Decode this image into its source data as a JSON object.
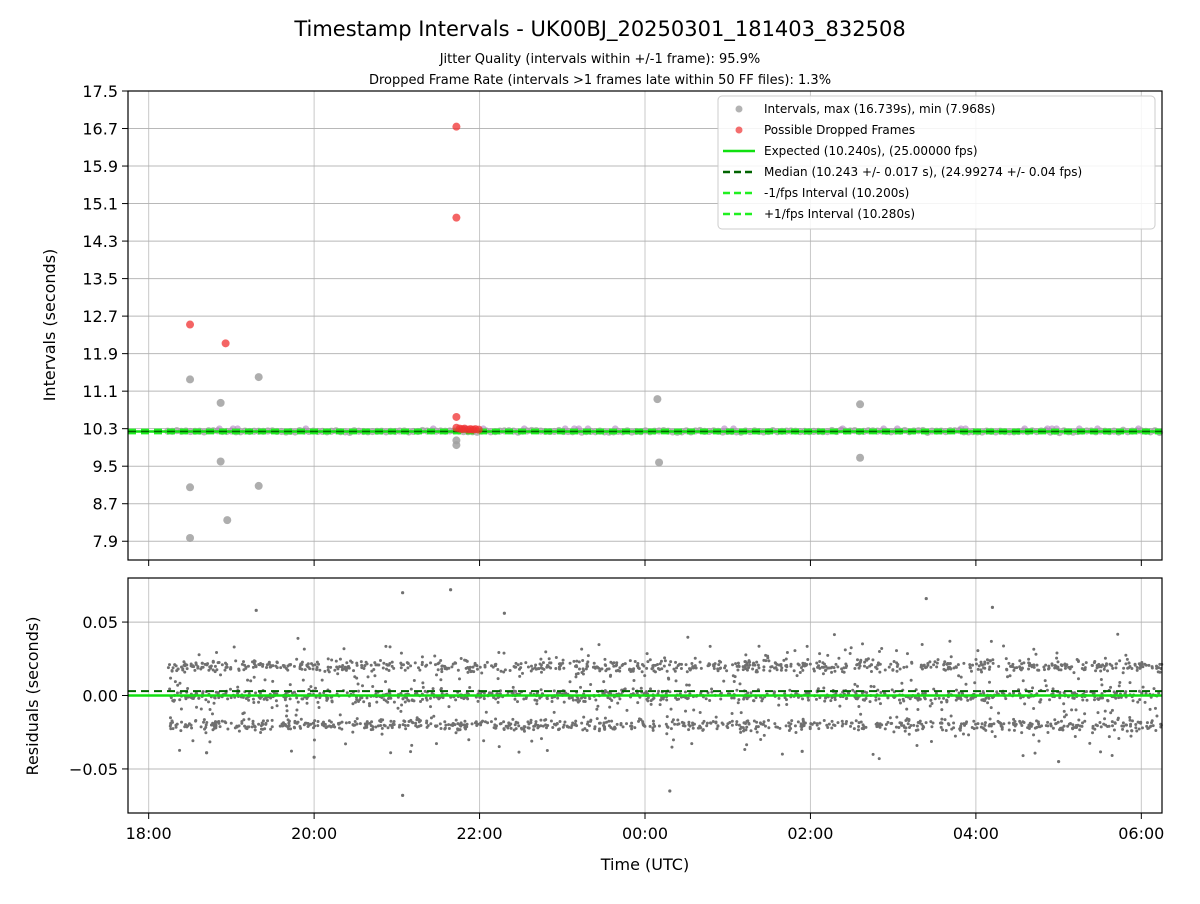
{
  "figure": {
    "title": "Timestamp Intervals - UK00BJ_20250301_181403_832508",
    "subtitle_line1": "Jitter Quality (intervals within +/-1 frame): 95.9%",
    "subtitle_line2": "Dropped Frame Rate (intervals >1 frames late within 50 FF files): 1.3%"
  },
  "colors": {
    "intervals": "#a0a0a0",
    "dropped": "#f03030",
    "expected": "#10e010",
    "median": "#006400",
    "fps_bounds": "#20f020",
    "residuals": "#707070",
    "grid": "#b0b0b0"
  },
  "chart_data": [
    {
      "type": "scatter",
      "ylabel": "Intervals (seconds)",
      "xlim": [
        -0.25,
        12.25
      ],
      "ylim": [
        7.5,
        17.5
      ],
      "x_ticks": [
        0,
        2,
        4,
        6,
        8,
        10,
        12
      ],
      "y_tick_labels": [
        "7.9",
        "8.7",
        "9.5",
        "10.3",
        "11.1",
        "11.9",
        "12.7",
        "13.5",
        "14.3",
        "15.1",
        "15.9",
        "16.7",
        "17.5"
      ],
      "y_tick_values": [
        7.9,
        8.7,
        9.5,
        10.3,
        11.1,
        11.9,
        12.7,
        13.5,
        14.3,
        15.1,
        15.9,
        16.7,
        17.5
      ],
      "grid": true,
      "legend_position": "top-right",
      "legend": {
        "intervals": "Intervals, max (16.739s), min (7.968s)",
        "dropped": "Possible Dropped Frames",
        "expected": "Expected (10.240s), (25.00000 fps)",
        "median": "Median (10.243 +/- 0.017 s), (24.99274 +/- 0.04 fps)",
        "lower": "-1/fps Interval (10.200s)",
        "upper": "+1/fps Interval (10.280s)"
      },
      "reference_lines": {
        "expected": 10.24,
        "median": 10.243,
        "lower": 10.2,
        "upper": 10.28
      },
      "band_start_hours": 0.23,
      "band_end_hours": 12.25,
      "outlier_intervals": [
        {
          "x": 0.5,
          "y": 11.35
        },
        {
          "x": 0.5,
          "y": 9.05
        },
        {
          "x": 0.5,
          "y": 7.97
        },
        {
          "x": 0.87,
          "y": 10.85
        },
        {
          "x": 0.87,
          "y": 9.6
        },
        {
          "x": 0.95,
          "y": 8.35
        },
        {
          "x": 1.33,
          "y": 11.4
        },
        {
          "x": 1.33,
          "y": 9.08
        },
        {
          "x": 3.72,
          "y": 10.05
        },
        {
          "x": 3.72,
          "y": 9.95
        },
        {
          "x": 6.15,
          "y": 10.93
        },
        {
          "x": 6.17,
          "y": 9.58
        },
        {
          "x": 8.6,
          "y": 10.82
        },
        {
          "x": 8.6,
          "y": 9.68
        }
      ],
      "dropped_frames": [
        {
          "x": 0.5,
          "y": 12.52
        },
        {
          "x": 0.93,
          "y": 12.12
        },
        {
          "x": 3.72,
          "y": 16.74
        },
        {
          "x": 3.72,
          "y": 14.8
        },
        {
          "x": 3.72,
          "y": 10.55
        },
        {
          "x": 3.72,
          "y": 10.32
        },
        {
          "x": 3.76,
          "y": 10.3
        },
        {
          "x": 3.79,
          "y": 10.29
        },
        {
          "x": 3.82,
          "y": 10.3
        },
        {
          "x": 3.86,
          "y": 10.28
        },
        {
          "x": 3.89,
          "y": 10.29
        },
        {
          "x": 3.92,
          "y": 10.28
        },
        {
          "x": 3.95,
          "y": 10.29
        },
        {
          "x": 3.99,
          "y": 10.28
        }
      ]
    },
    {
      "type": "scatter",
      "xlabel": "Time (UTC)",
      "ylabel": "Residuals (seconds)",
      "xlim": [
        -0.25,
        12.25
      ],
      "ylim": [
        -0.08,
        0.08
      ],
      "x_ticks": [
        0,
        2,
        4,
        6,
        8,
        10,
        12
      ],
      "x_tick_labels": [
        "18:00",
        "20:00",
        "22:00",
        "00:00",
        "02:00",
        "04:00",
        "06:00"
      ],
      "y_tick_labels": [
        "−0.05",
        "0.00",
        "0.05"
      ],
      "y_tick_values": [
        -0.05,
        0,
        0.05
      ],
      "grid": true,
      "reference_lines": {
        "expected": 0.0,
        "median": 0.003
      },
      "residual_points_count": 2600,
      "residual_levels": [
        0.02,
        0.0,
        -0.02
      ],
      "residual_outliers": [
        {
          "x": 3.07,
          "y": 0.07
        },
        {
          "x": 3.07,
          "y": -0.068
        },
        {
          "x": 3.65,
          "y": 0.072
        },
        {
          "x": 6.3,
          "y": -0.065
        },
        {
          "x": 9.4,
          "y": 0.066
        },
        {
          "x": 1.3,
          "y": 0.058
        },
        {
          "x": 2.0,
          "y": -0.042
        },
        {
          "x": 10.2,
          "y": 0.06
        },
        {
          "x": 11.0,
          "y": -0.045
        },
        {
          "x": 4.3,
          "y": 0.056
        },
        {
          "x": 0.7,
          "y": -0.039
        },
        {
          "x": 7.9,
          "y": -0.038
        }
      ]
    }
  ]
}
